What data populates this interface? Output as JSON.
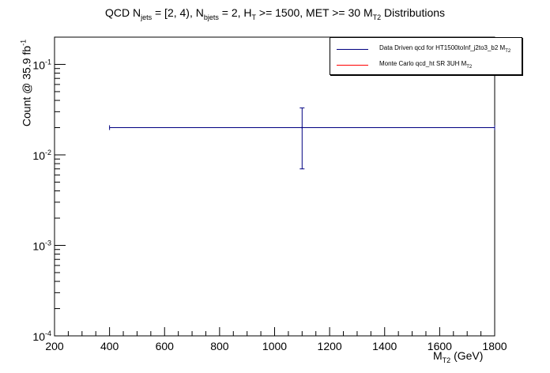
{
  "title": {
    "prefix": "QCD N",
    "sub1": "jets",
    "mid1": " = [2, 4), N",
    "sub2": "bjets",
    "mid2": " = 2, H",
    "sub3": "T",
    "mid3": " >= 1500, MET >= 30 M",
    "sub4": "T2",
    "suffix": " Distributions"
  },
  "xlabel": {
    "base": "M",
    "sub": "T2",
    "suffix": " (GeV)"
  },
  "ylabel": {
    "text": "Count @ 35.9 fb",
    "sup": "-1"
  },
  "legend": {
    "items": [
      {
        "text": "Data Driven qcd for HT1500toInf_j2to3_b2 M",
        "sub": "T2",
        "color": "#000080"
      },
      {
        "text": "Monte Carlo qcd_ht SR 3UH M",
        "sub": "T2",
        "color": "#ff0000"
      }
    ]
  },
  "chart_data": {
    "type": "scatter",
    "x_range": [
      200,
      1800
    ],
    "y_range": [
      0.0001,
      0.2
    ],
    "y_scale": "log",
    "x_ticks": [
      "200",
      "400",
      "600",
      "800",
      "1000",
      "1200",
      "1400",
      "1600",
      "1800"
    ],
    "x_tick_values": [
      200,
      400,
      600,
      800,
      1000,
      1200,
      1400,
      1600,
      1800
    ],
    "y_ticks": [
      {
        "base": "10",
        "exp": "-4",
        "value": 0.0001
      },
      {
        "base": "10",
        "exp": "-3",
        "value": 0.001
      },
      {
        "base": "10",
        "exp": "-2",
        "value": 0.01
      },
      {
        "base": "10",
        "exp": "-1",
        "value": 0.1
      }
    ],
    "series": [
      {
        "name": "Data Driven qcd for HT1500toInf_j2to3_b2 MT2",
        "color": "#000080",
        "points": [
          {
            "x": 1100,
            "x_low": 400,
            "x_high": 1800,
            "y": 0.02,
            "y_low": 0.007,
            "y_high": 0.033
          }
        ]
      },
      {
        "name": "Monte Carlo qcd_ht SR 3UH MT2",
        "color": "#ff0000",
        "points": []
      }
    ],
    "legend_position": "top-right",
    "grid": false
  }
}
